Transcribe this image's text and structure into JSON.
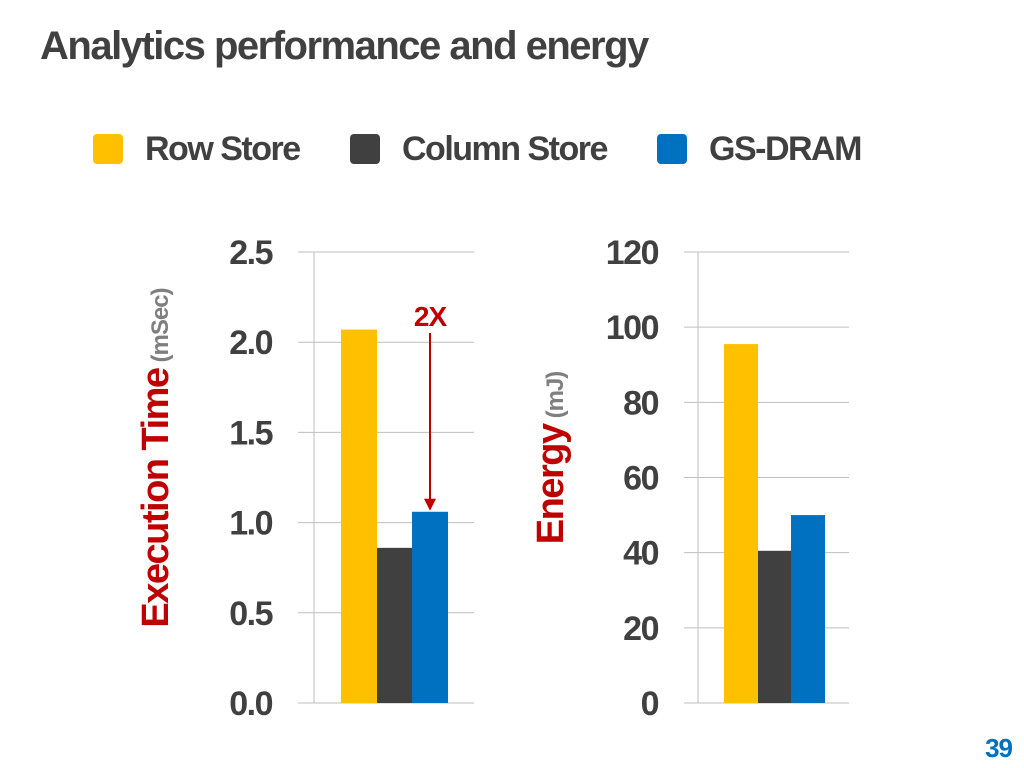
{
  "slide": {
    "title": "Analytics performance and energy",
    "page_number": "39"
  },
  "legend": [
    {
      "name": "Row Store",
      "color": "#FFC000"
    },
    {
      "name": "Column Store",
      "color": "#404040"
    },
    {
      "name": "GS-DRAM",
      "color": "#0070C0"
    }
  ],
  "colors": {
    "title_text": "#404040",
    "axis_label": "#C00000",
    "axis_unit": "#7F7F7F",
    "tick_text": "#404040",
    "gridline": "#BFBFBF",
    "annotation": "#C00000",
    "page_number": "#0070C0"
  },
  "chart_data": [
    {
      "type": "bar",
      "ylabel": "Execution Time",
      "ylabel_unit": "(mSec)",
      "ylim": [
        0,
        2.5
      ],
      "yticks": [
        "0.0",
        "0.5",
        "1.0",
        "1.5",
        "2.0",
        "2.5"
      ],
      "grid": true,
      "series": [
        {
          "name": "Row Store",
          "values": [
            2.07
          ]
        },
        {
          "name": "Column Store",
          "values": [
            0.86
          ]
        },
        {
          "name": "GS-DRAM",
          "values": [
            1.06
          ]
        }
      ],
      "annotation": {
        "text": "2X",
        "series": "GS-DRAM"
      }
    },
    {
      "type": "bar",
      "ylabel": "Energy",
      "ylabel_unit": "(mJ)",
      "ylim": [
        0,
        120
      ],
      "yticks": [
        "0",
        "20",
        "40",
        "60",
        "80",
        "100",
        "120"
      ],
      "grid": true,
      "series": [
        {
          "name": "Row Store",
          "values": [
            95.5
          ]
        },
        {
          "name": "Column Store",
          "values": [
            40.5
          ]
        },
        {
          "name": "GS-DRAM",
          "values": [
            50
          ]
        }
      ]
    }
  ]
}
